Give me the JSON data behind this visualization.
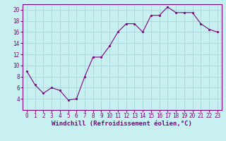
{
  "x": [
    0,
    1,
    2,
    3,
    4,
    5,
    6,
    7,
    8,
    9,
    10,
    11,
    12,
    13,
    14,
    15,
    16,
    17,
    18,
    19,
    20,
    21,
    22,
    23
  ],
  "y": [
    9,
    6.5,
    5,
    6,
    5.5,
    3.8,
    4,
    8,
    11.5,
    11.5,
    13.5,
    16,
    17.5,
    17.5,
    16,
    19,
    19,
    20.5,
    19.5,
    19.5,
    19.5,
    17.5,
    16.5,
    16
  ],
  "line_color": "#800080",
  "marker_color": "#800080",
  "bg_color": "#c8f0f0",
  "grid_color": "#a8d8d8",
  "xlabel": "Windchill (Refroidissement éolien,°C)",
  "xlim": [
    -0.5,
    23.5
  ],
  "ylim": [
    2,
    21
  ],
  "yticks": [
    4,
    6,
    8,
    10,
    12,
    14,
    16,
    18,
    20
  ],
  "xticks": [
    0,
    1,
    2,
    3,
    4,
    5,
    6,
    7,
    8,
    9,
    10,
    11,
    12,
    13,
    14,
    15,
    16,
    17,
    18,
    19,
    20,
    21,
    22,
    23
  ],
  "xtick_labels": [
    "0",
    "1",
    "2",
    "3",
    "4",
    "5",
    "6",
    "7",
    "8",
    "9",
    "10",
    "11",
    "12",
    "13",
    "14",
    "15",
    "16",
    "17",
    "18",
    "19",
    "20",
    "21",
    "22",
    "23"
  ],
  "label_color": "#800080",
  "spine_color": "#800080",
  "label_fontsize": 6.5,
  "tick_fontsize": 5.5
}
